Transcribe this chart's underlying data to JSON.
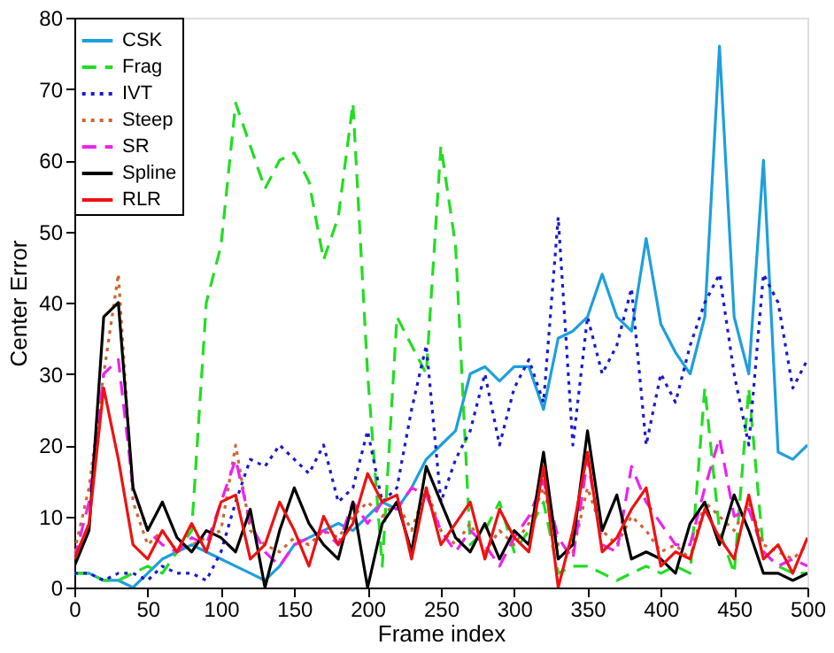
{
  "chart_data": {
    "type": "line",
    "xlabel": "Frame index",
    "ylabel": "Center Error",
    "x": [
      0,
      10,
      20,
      30,
      40,
      50,
      60,
      70,
      80,
      90,
      100,
      110,
      120,
      130,
      140,
      150,
      160,
      170,
      180,
      190,
      200,
      210,
      220,
      230,
      240,
      250,
      260,
      270,
      280,
      290,
      300,
      310,
      320,
      330,
      340,
      350,
      360,
      370,
      380,
      390,
      400,
      410,
      420,
      430,
      440,
      450,
      460,
      470,
      480,
      490,
      500
    ],
    "xlim": [
      0,
      500
    ],
    "xticks": [
      0,
      50,
      100,
      150,
      200,
      250,
      300,
      350,
      400,
      450,
      500
    ],
    "ylim": [
      0,
      80
    ],
    "yticks": [
      0,
      10,
      20,
      30,
      40,
      50,
      60,
      70,
      80
    ],
    "grid": false,
    "legend": "top left",
    "series": [
      {
        "name": "CSK",
        "color": "#1e9fdc",
        "line_style": "solid",
        "values": [
          2,
          2,
          1,
          1,
          0,
          2,
          4,
          5,
          6,
          5,
          4,
          3,
          2,
          1,
          3,
          6,
          7,
          8,
          9,
          8,
          10,
          12,
          11,
          14,
          18,
          20,
          22,
          30,
          31,
          29,
          31,
          31,
          25,
          35,
          36,
          38,
          44,
          38,
          36,
          49,
          37,
          33,
          30,
          38,
          76,
          38,
          30,
          60,
          19,
          18,
          20
        ]
      },
      {
        "name": "Frag",
        "color": "#22dd22",
        "line_style": "dashed",
        "values": [
          2,
          2,
          1,
          1,
          2,
          3,
          2,
          5,
          8,
          40,
          48,
          68,
          62,
          56,
          60,
          61,
          57,
          46,
          52,
          68,
          30,
          3,
          38,
          34,
          30,
          62,
          48,
          6,
          8,
          12,
          5,
          8,
          12,
          2,
          3,
          3,
          2,
          1,
          2,
          3,
          2,
          3,
          2,
          28,
          8,
          2,
          28,
          5,
          3,
          2,
          2
        ]
      },
      {
        "name": "IVT",
        "color": "#1a1acc",
        "line_style": "dotted",
        "values": [
          2,
          2,
          1,
          2,
          2,
          1,
          3,
          2,
          2,
          1,
          5,
          12,
          18,
          17,
          20,
          18,
          16,
          20,
          12,
          14,
          22,
          12,
          14,
          25,
          34,
          12,
          18,
          22,
          30,
          20,
          28,
          32,
          26,
          52,
          20,
          38,
          30,
          34,
          42,
          20,
          30,
          26,
          34,
          40,
          44,
          30,
          20,
          44,
          40,
          28,
          32
        ]
      },
      {
        "name": "Steep",
        "color": "#cc6633",
        "line_style": "dotted",
        "values": [
          5,
          14,
          30,
          44,
          12,
          6,
          8,
          5,
          6,
          7,
          8,
          20,
          8,
          6,
          5,
          7,
          6,
          8,
          7,
          10,
          12,
          10,
          12,
          8,
          14,
          8,
          6,
          9,
          5,
          8,
          6,
          9,
          14,
          6,
          5,
          14,
          8,
          6,
          10,
          8,
          5,
          6,
          4,
          12,
          10,
          8,
          12,
          6,
          5,
          4,
          6
        ]
      },
      {
        "name": "SR",
        "color": "#ee22ee",
        "line_style": "dashed",
        "values": [
          4,
          12,
          30,
          32,
          14,
          8,
          6,
          5,
          7,
          6,
          12,
          18,
          9,
          5,
          3,
          6,
          7,
          8,
          6,
          12,
          9,
          12,
          11,
          14,
          13,
          8,
          5,
          8,
          6,
          3,
          7,
          10,
          15,
          7,
          4,
          18,
          6,
          5,
          17,
          12,
          9,
          6,
          6,
          14,
          21,
          10,
          11,
          5,
          3,
          4,
          3
        ]
      },
      {
        "name": "Spline",
        "color": "#000000",
        "line_style": "solid",
        "values": [
          3,
          8,
          38,
          40,
          14,
          8,
          12,
          7,
          5,
          8,
          7,
          5,
          11,
          0,
          8,
          14,
          9,
          6,
          4,
          12,
          0,
          9,
          12,
          5,
          17,
          12,
          7,
          5,
          9,
          4,
          8,
          6,
          19,
          4,
          6,
          22,
          8,
          13,
          4,
          5,
          4,
          2,
          9,
          12,
          6,
          13,
          8,
          2,
          2,
          1,
          2
        ]
      },
      {
        "name": "RLR",
        "color": "#ee1111",
        "line_style": "solid",
        "values": [
          4,
          9,
          28,
          18,
          6,
          4,
          8,
          5,
          9,
          5,
          12,
          13,
          4,
          6,
          12,
          8,
          3,
          10,
          6,
          9,
          16,
          12,
          13,
          4,
          14,
          6,
          9,
          12,
          4,
          11,
          7,
          5,
          17,
          0,
          8,
          19,
          5,
          7,
          11,
          14,
          3,
          5,
          4,
          11,
          7,
          4,
          13,
          4,
          6,
          2,
          7
        ]
      }
    ]
  }
}
